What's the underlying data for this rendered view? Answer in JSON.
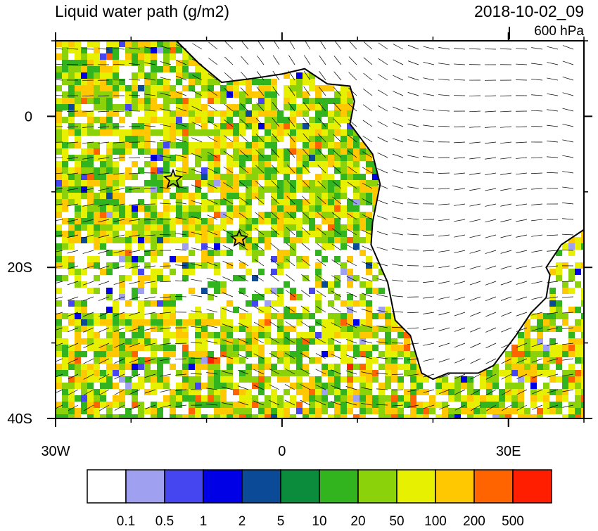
{
  "map": {
    "title": "Liquid water path (g/m2)",
    "date": "2018-10-02_09",
    "level": "600 hPa",
    "lon_range": [
      -30,
      40
    ],
    "lat_range": [
      -40,
      10
    ],
    "lon_ticks": [
      {
        "value": -30,
        "label": "30W"
      },
      {
        "value": 0,
        "label": "0"
      },
      {
        "value": 30,
        "label": "30E"
      }
    ],
    "lat_ticks": [
      {
        "value": 0,
        "label": "0"
      },
      {
        "value": -20,
        "label": "20S"
      },
      {
        "value": -40,
        "label": "40S"
      }
    ]
  },
  "colorbar": {
    "colors": [
      "#ffffff",
      "#a0a0f0",
      "#4646f0",
      "#0000e6",
      "#0a4a96",
      "#0a8c3c",
      "#32b41e",
      "#8cd20a",
      "#e6f000",
      "#ffc800",
      "#ff6400",
      "#ff1e00"
    ],
    "labels": [
      0.1,
      0.5,
      1,
      2,
      5,
      10,
      20,
      50,
      100,
      200,
      500
    ]
  }
}
